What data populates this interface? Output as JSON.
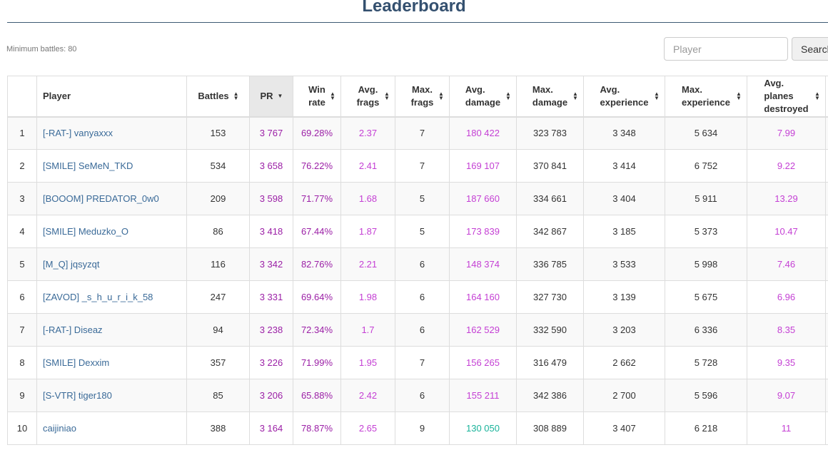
{
  "header": {
    "title": "Leaderboard",
    "min_battles": "Minimum battles: 80"
  },
  "search": {
    "placeholder": "Player",
    "value": "",
    "button_label": "Search"
  },
  "table": {
    "columns": [
      {
        "key": "rank",
        "label": ""
      },
      {
        "key": "player",
        "label": "Player"
      },
      {
        "key": "battles",
        "label": "Battles",
        "sortable": true
      },
      {
        "key": "pr",
        "label": "PR",
        "sortable": true,
        "sorted": "desc"
      },
      {
        "key": "win_rate",
        "label_lines": [
          "Win",
          "rate"
        ],
        "sortable": true
      },
      {
        "key": "avg_frags",
        "label_lines": [
          "Avg.",
          "frags"
        ],
        "sortable": true
      },
      {
        "key": "max_frags",
        "label_lines": [
          "Max.",
          "frags"
        ],
        "sortable": true
      },
      {
        "key": "avg_damage",
        "label_lines": [
          "Avg.",
          "damage"
        ],
        "sortable": true
      },
      {
        "key": "max_damage",
        "label_lines": [
          "Max.",
          "damage"
        ],
        "sortable": true
      },
      {
        "key": "avg_experience",
        "label_lines": [
          "Avg.",
          "experience"
        ],
        "sortable": true
      },
      {
        "key": "max_experience",
        "label_lines": [
          "Max.",
          "experience"
        ],
        "sortable": true
      },
      {
        "key": "avg_planes",
        "label_lines": [
          "Avg.",
          "planes",
          "destroyed"
        ],
        "sortable": true
      }
    ],
    "rows": [
      {
        "rank": "1",
        "player": "[-RAT-] vanyaxxx",
        "battles": "153",
        "pr": "3 767",
        "win_rate": "69.28%",
        "avg_frags": "2.37",
        "max_frags": "7",
        "avg_damage": "180 422",
        "max_damage": "323 783",
        "avg_experience": "3 348",
        "max_experience": "5 634",
        "avg_planes": "7.99"
      },
      {
        "rank": "2",
        "player": "[SMILE] SeMeN_TKD",
        "battles": "534",
        "pr": "3 658",
        "win_rate": "76.22%",
        "avg_frags": "2.41",
        "max_frags": "7",
        "avg_damage": "169 107",
        "max_damage": "370 841",
        "avg_experience": "3 414",
        "max_experience": "6 752",
        "avg_planes": "9.22"
      },
      {
        "rank": "3",
        "player": "[BOOOM] PREDATOR_0w0",
        "battles": "209",
        "pr": "3 598",
        "win_rate": "71.77%",
        "avg_frags": "1.68",
        "max_frags": "5",
        "avg_damage": "187 660",
        "max_damage": "334 661",
        "avg_experience": "3 404",
        "max_experience": "5 911",
        "avg_planes": "13.29"
      },
      {
        "rank": "4",
        "player": "[SMILE] Meduzko_O",
        "battles": "86",
        "pr": "3 418",
        "win_rate": "67.44%",
        "avg_frags": "1.87",
        "max_frags": "5",
        "avg_damage": "173 839",
        "max_damage": "342 867",
        "avg_experience": "3 185",
        "max_experience": "5 373",
        "avg_planes": "10.47"
      },
      {
        "rank": "5",
        "player": "[M_Q] jqsyzqt",
        "battles": "116",
        "pr": "3 342",
        "win_rate": "82.76%",
        "avg_frags": "2.21",
        "max_frags": "6",
        "avg_damage": "148 374",
        "max_damage": "336 785",
        "avg_experience": "3 533",
        "max_experience": "5 998",
        "avg_planes": "7.46"
      },
      {
        "rank": "6",
        "player": "[ZAVOD] _s_h_u_r_i_k_58",
        "battles": "247",
        "pr": "3 331",
        "win_rate": "69.64%",
        "avg_frags": "1.98",
        "max_frags": "6",
        "avg_damage": "164 160",
        "max_damage": "327 730",
        "avg_experience": "3 139",
        "max_experience": "5 675",
        "avg_planes": "6.96"
      },
      {
        "rank": "7",
        "player": "[-RAT-] Diseaz",
        "battles": "94",
        "pr": "3 238",
        "win_rate": "72.34%",
        "avg_frags": "1.7",
        "max_frags": "6",
        "avg_damage": "162 529",
        "max_damage": "332 590",
        "avg_experience": "3 203",
        "max_experience": "6 336",
        "avg_planes": "8.35"
      },
      {
        "rank": "8",
        "player": "[SMILE] Dexxim",
        "battles": "357",
        "pr": "3 226",
        "win_rate": "71.99%",
        "avg_frags": "1.95",
        "max_frags": "7",
        "avg_damage": "156 265",
        "max_damage": "316 479",
        "avg_experience": "2 662",
        "max_experience": "5 728",
        "avg_planes": "9.35"
      },
      {
        "rank": "9",
        "player": "[S-VTR] tiger180",
        "battles": "85",
        "pr": "3 206",
        "win_rate": "65.88%",
        "avg_frags": "2.42",
        "max_frags": "6",
        "avg_damage": "155 211",
        "max_damage": "342 386",
        "avg_experience": "2 700",
        "max_experience": "5 596",
        "avg_planes": "9.07"
      },
      {
        "rank": "10",
        "player": "caijiniao",
        "battles": "388",
        "pr": "3 164",
        "win_rate": "78.87%",
        "avg_frags": "2.65",
        "max_frags": "9",
        "avg_damage": "130 050",
        "max_damage": "308 889",
        "avg_experience": "3 407",
        "max_experience": "6 218",
        "avg_planes": "11"
      }
    ],
    "cell_colors": {
      "pr": "#9b1fa6",
      "win_rate": "#9b1fa6",
      "highlight": "#c43fd4",
      "good": "#19b39a",
      "link": "#3a6a98"
    },
    "avg_damage_teal_row": "10"
  }
}
